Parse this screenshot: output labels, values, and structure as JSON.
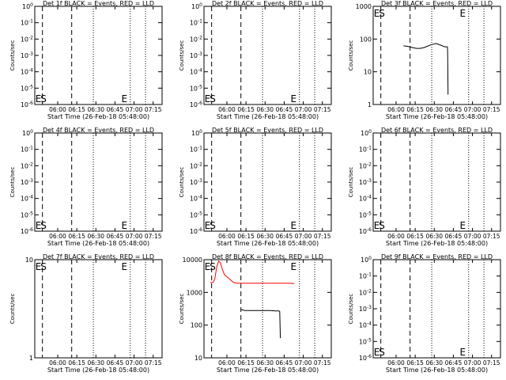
{
  "colors": {
    "background": "#ffffff",
    "axes": "#000000",
    "black_series": "#000000",
    "red_series": "#ff0000"
  },
  "chart_data": [
    {
      "type": "line",
      "title": "Det 1f BLACK = Events, RED = LLD",
      "xlabel": "Start Time (26-Feb-18 05:48:00)",
      "ylabel": "Counts/sec",
      "x_ticks": [
        "06:00",
        "06:15",
        "06:30",
        "06:45",
        "07:00",
        "07:15"
      ],
      "y_scale": "log",
      "y_ticks": [
        "10^0",
        "10^-1",
        "10^-2",
        "10^-3",
        "10^-4",
        "10^-5",
        "10^-6"
      ],
      "markers": [
        "E",
        "S",
        "E"
      ],
      "series": []
    },
    {
      "type": "line",
      "title": "Det 2f BLACK = Events, RED = LLD",
      "xlabel": "Start Time (26-Feb-18 05:48:00)",
      "ylabel": "Counts/sec",
      "x_ticks": [
        "06:00",
        "06:15",
        "06:30",
        "06:45",
        "07:00",
        "07:15"
      ],
      "y_scale": "log",
      "y_ticks": [
        "10^0",
        "10^-1",
        "10^-2",
        "10^-3",
        "10^-4",
        "10^-5",
        "10^-6"
      ],
      "markers": [
        "E",
        "S",
        "E"
      ],
      "series": []
    },
    {
      "type": "line",
      "title": "Det 3f BLACK = Events, RED = LLD",
      "xlabel": "Start Time (26-Feb-18 05:48:00)",
      "ylabel": "Counts/sec",
      "x_ticks": [
        "06:00",
        "06:15",
        "06:30",
        "06:45",
        "07:00",
        "07:15"
      ],
      "y_scale": "log",
      "y_ticks": [
        "1",
        "10",
        "100",
        "1000"
      ],
      "markers": [
        "E",
        "S",
        "E"
      ],
      "series": [
        {
          "color": "#000000",
          "points": [
            [
              17.8,
              62
            ],
            [
              21,
              60
            ],
            [
              25,
              55
            ],
            [
              28,
              52
            ],
            [
              31,
              52
            ],
            [
              34,
              55
            ],
            [
              36.5,
              60
            ],
            [
              39,
              66
            ],
            [
              41.5,
              70
            ],
            [
              43,
              73
            ],
            [
              44.5,
              71
            ],
            [
              46,
              67
            ],
            [
              48,
              63
            ],
            [
              50,
              58
            ],
            [
              52.3,
              58
            ],
            [
              52.5,
              40
            ],
            [
              52.8,
              2
            ]
          ]
        }
      ]
    },
    {
      "type": "line",
      "title": "Det 4f BLACK = Events, RED = LLD",
      "xlabel": "Start Time (26-Feb-18 05:48:00)",
      "ylabel": "Counts/sec",
      "x_ticks": [
        "06:00",
        "06:15",
        "06:30",
        "06:45",
        "07:00",
        "07:15"
      ],
      "y_scale": "log",
      "y_ticks": [
        "10^0",
        "10^-1",
        "10^-2",
        "10^-3",
        "10^-4",
        "10^-5",
        "10^-6"
      ],
      "markers": [
        "E",
        "S",
        "E"
      ],
      "series": []
    },
    {
      "type": "line",
      "title": "Det 5f BLACK = Events, RED = LLD",
      "xlabel": "Start Time (26-Feb-18 05:48:00)",
      "ylabel": "Counts/sec",
      "x_ticks": [
        "06:00",
        "06:15",
        "06:30",
        "06:45",
        "07:00",
        "07:15"
      ],
      "y_scale": "log",
      "y_ticks": [
        "10^0",
        "10^-1",
        "10^-2",
        "10^-3",
        "10^-4",
        "10^-5",
        "10^-6"
      ],
      "markers": [
        "E",
        "S",
        "E"
      ],
      "series": []
    },
    {
      "type": "line",
      "title": "Det 6f BLACK = Events, RED = LLD",
      "xlabel": "Start Time (26-Feb-18 05:48:00)",
      "ylabel": "Counts/sec",
      "x_ticks": [
        "06:00",
        "06:15",
        "06:30",
        "06:45",
        "07:00",
        "07:15"
      ],
      "y_scale": "log",
      "y_ticks": [
        "10^0",
        "10^-1",
        "10^-2",
        "10^-3",
        "10^-4",
        "10^-5",
        "10^-6"
      ],
      "markers": [
        "E",
        "S",
        "E"
      ],
      "series": []
    },
    {
      "type": "line",
      "title": "Det 7f BLACK = Events, RED = LLD",
      "xlabel": "Start Time (26-Feb-18 05:48:00)",
      "ylabel": "Counts/sec",
      "x_ticks": [
        "06:00",
        "06:15",
        "06:30",
        "06:45",
        "07:00",
        "07:15"
      ],
      "y_scale": "log",
      "y_ticks": [
        "1",
        "10"
      ],
      "markers": [
        "E",
        "S",
        "E"
      ],
      "series": []
    },
    {
      "type": "line",
      "title": "Det 8f BLACK = Events, RED = LLD",
      "xlabel": "Start Time (26-Feb-18 05:48:00)",
      "ylabel": "Counts/sec",
      "x_ticks": [
        "06:00",
        "06:15",
        "06:30",
        "06:45",
        "07:00",
        "07:15"
      ],
      "y_scale": "log",
      "y_ticks": [
        "10",
        "100",
        "1000",
        "10000"
      ],
      "markers": [
        "E",
        "S",
        "E"
      ],
      "series": [
        {
          "color": "#ff0000",
          "points": [
            [
              -1.2,
              2000
            ],
            [
              1,
              2000
            ],
            [
              2.5,
              2600
            ],
            [
              4,
              6000
            ],
            [
              5.5,
              9000
            ],
            [
              7,
              8000
            ],
            [
              8.5,
              5000
            ],
            [
              10,
              3500
            ],
            [
              12,
              3000
            ],
            [
              14,
              2600
            ],
            [
              16,
              2200
            ],
            [
              17.5,
              2000
            ],
            [
              20,
              1900
            ],
            [
              25,
              1900
            ],
            [
              30,
              1900
            ],
            [
              35,
              1900
            ],
            [
              40,
              1900
            ],
            [
              45,
              1900
            ],
            [
              50,
              1900
            ],
            [
              55,
              1900
            ],
            [
              60,
              1900
            ],
            [
              65,
              1850
            ]
          ]
        },
        {
          "color": "#000000",
          "points": [
            [
              23,
              300
            ],
            [
              26,
              280
            ],
            [
              30,
              280
            ],
            [
              34,
              280
            ],
            [
              38,
              280
            ],
            [
              42,
              280
            ],
            [
              46,
              280
            ],
            [
              50,
              270
            ],
            [
              53,
              270
            ],
            [
              53.5,
              260
            ],
            [
              54,
              40
            ]
          ]
        }
      ]
    },
    {
      "type": "line",
      "title": "Det 9f BLACK = Events, RED = LLD",
      "xlabel": "Start Time (26-Feb-18 05:48:00)",
      "ylabel": "Counts/sec",
      "x_ticks": [
        "06:00",
        "06:15",
        "06:30",
        "06:45",
        "07:00",
        "07:15"
      ],
      "y_scale": "log",
      "y_ticks": [
        "10^0",
        "10^-1",
        "10^-2",
        "10^-3",
        "10^-4",
        "10^-5",
        "10^-6"
      ],
      "markers": [
        "E",
        "S",
        "E"
      ],
      "series": []
    }
  ]
}
